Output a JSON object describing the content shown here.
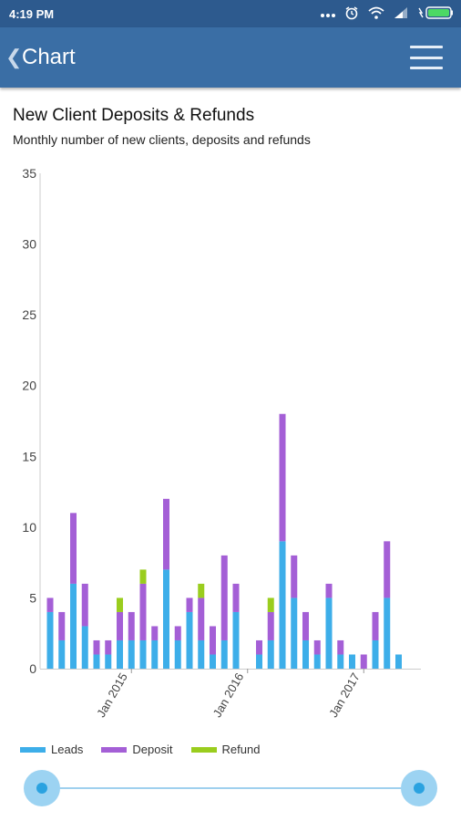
{
  "status": {
    "time": "4:19 PM",
    "icons": [
      "more-icon",
      "alarm-icon",
      "wifi-icon",
      "signal-icon",
      "battery-icon"
    ]
  },
  "appbar": {
    "title": "Chart",
    "back_icon": "chevron-left-icon",
    "menu_icon": "hamburger-menu-icon"
  },
  "chart_data": {
    "type": "bar",
    "stacked": true,
    "title": "New Client Deposits & Refunds",
    "subtitle": "Monthly number of new clients, deposits and refunds",
    "xlabel": "",
    "ylabel": "",
    "ylim": [
      0,
      35
    ],
    "yticks": [
      0,
      5,
      10,
      15,
      20,
      25,
      30,
      35
    ],
    "xtick_labels": [
      {
        "label": "Jan 2015",
        "index": 7
      },
      {
        "label": "Jan 2016",
        "index": 17
      },
      {
        "label": "Jan 2017",
        "index": 27
      }
    ],
    "grid": false,
    "legend_position": "bottom-left",
    "series": [
      {
        "name": "Leads",
        "color": "#3daee9",
        "values": [
          4,
          2,
          6,
          3,
          1,
          1,
          2,
          2,
          2,
          2,
          7,
          2,
          4,
          2,
          1,
          2,
          4,
          0,
          1,
          2,
          9,
          5,
          2,
          1,
          5,
          1,
          1,
          0,
          2,
          5,
          1
        ]
      },
      {
        "name": "Deposit",
        "color": "#a45fd6",
        "values": [
          1,
          2,
          5,
          3,
          1,
          1,
          2,
          2,
          4,
          1,
          5,
          1,
          1,
          3,
          2,
          6,
          2,
          0,
          1,
          2,
          9,
          3,
          2,
          1,
          1,
          1,
          0,
          1,
          2,
          4,
          0
        ]
      },
      {
        "name": "Refund",
        "color": "#9acd1e",
        "values": [
          0,
          0,
          0,
          0,
          0,
          0,
          1,
          0,
          1,
          0,
          0,
          0,
          0,
          1,
          0,
          0,
          0,
          0,
          0,
          1,
          0,
          0,
          0,
          0,
          0,
          0,
          0,
          0,
          0,
          0,
          0
        ]
      }
    ]
  },
  "legend": [
    {
      "label": "Leads",
      "color": "#3daee9"
    },
    {
      "label": "Deposit",
      "color": "#a45fd6"
    },
    {
      "label": "Refund",
      "color": "#9acd1e"
    }
  ]
}
